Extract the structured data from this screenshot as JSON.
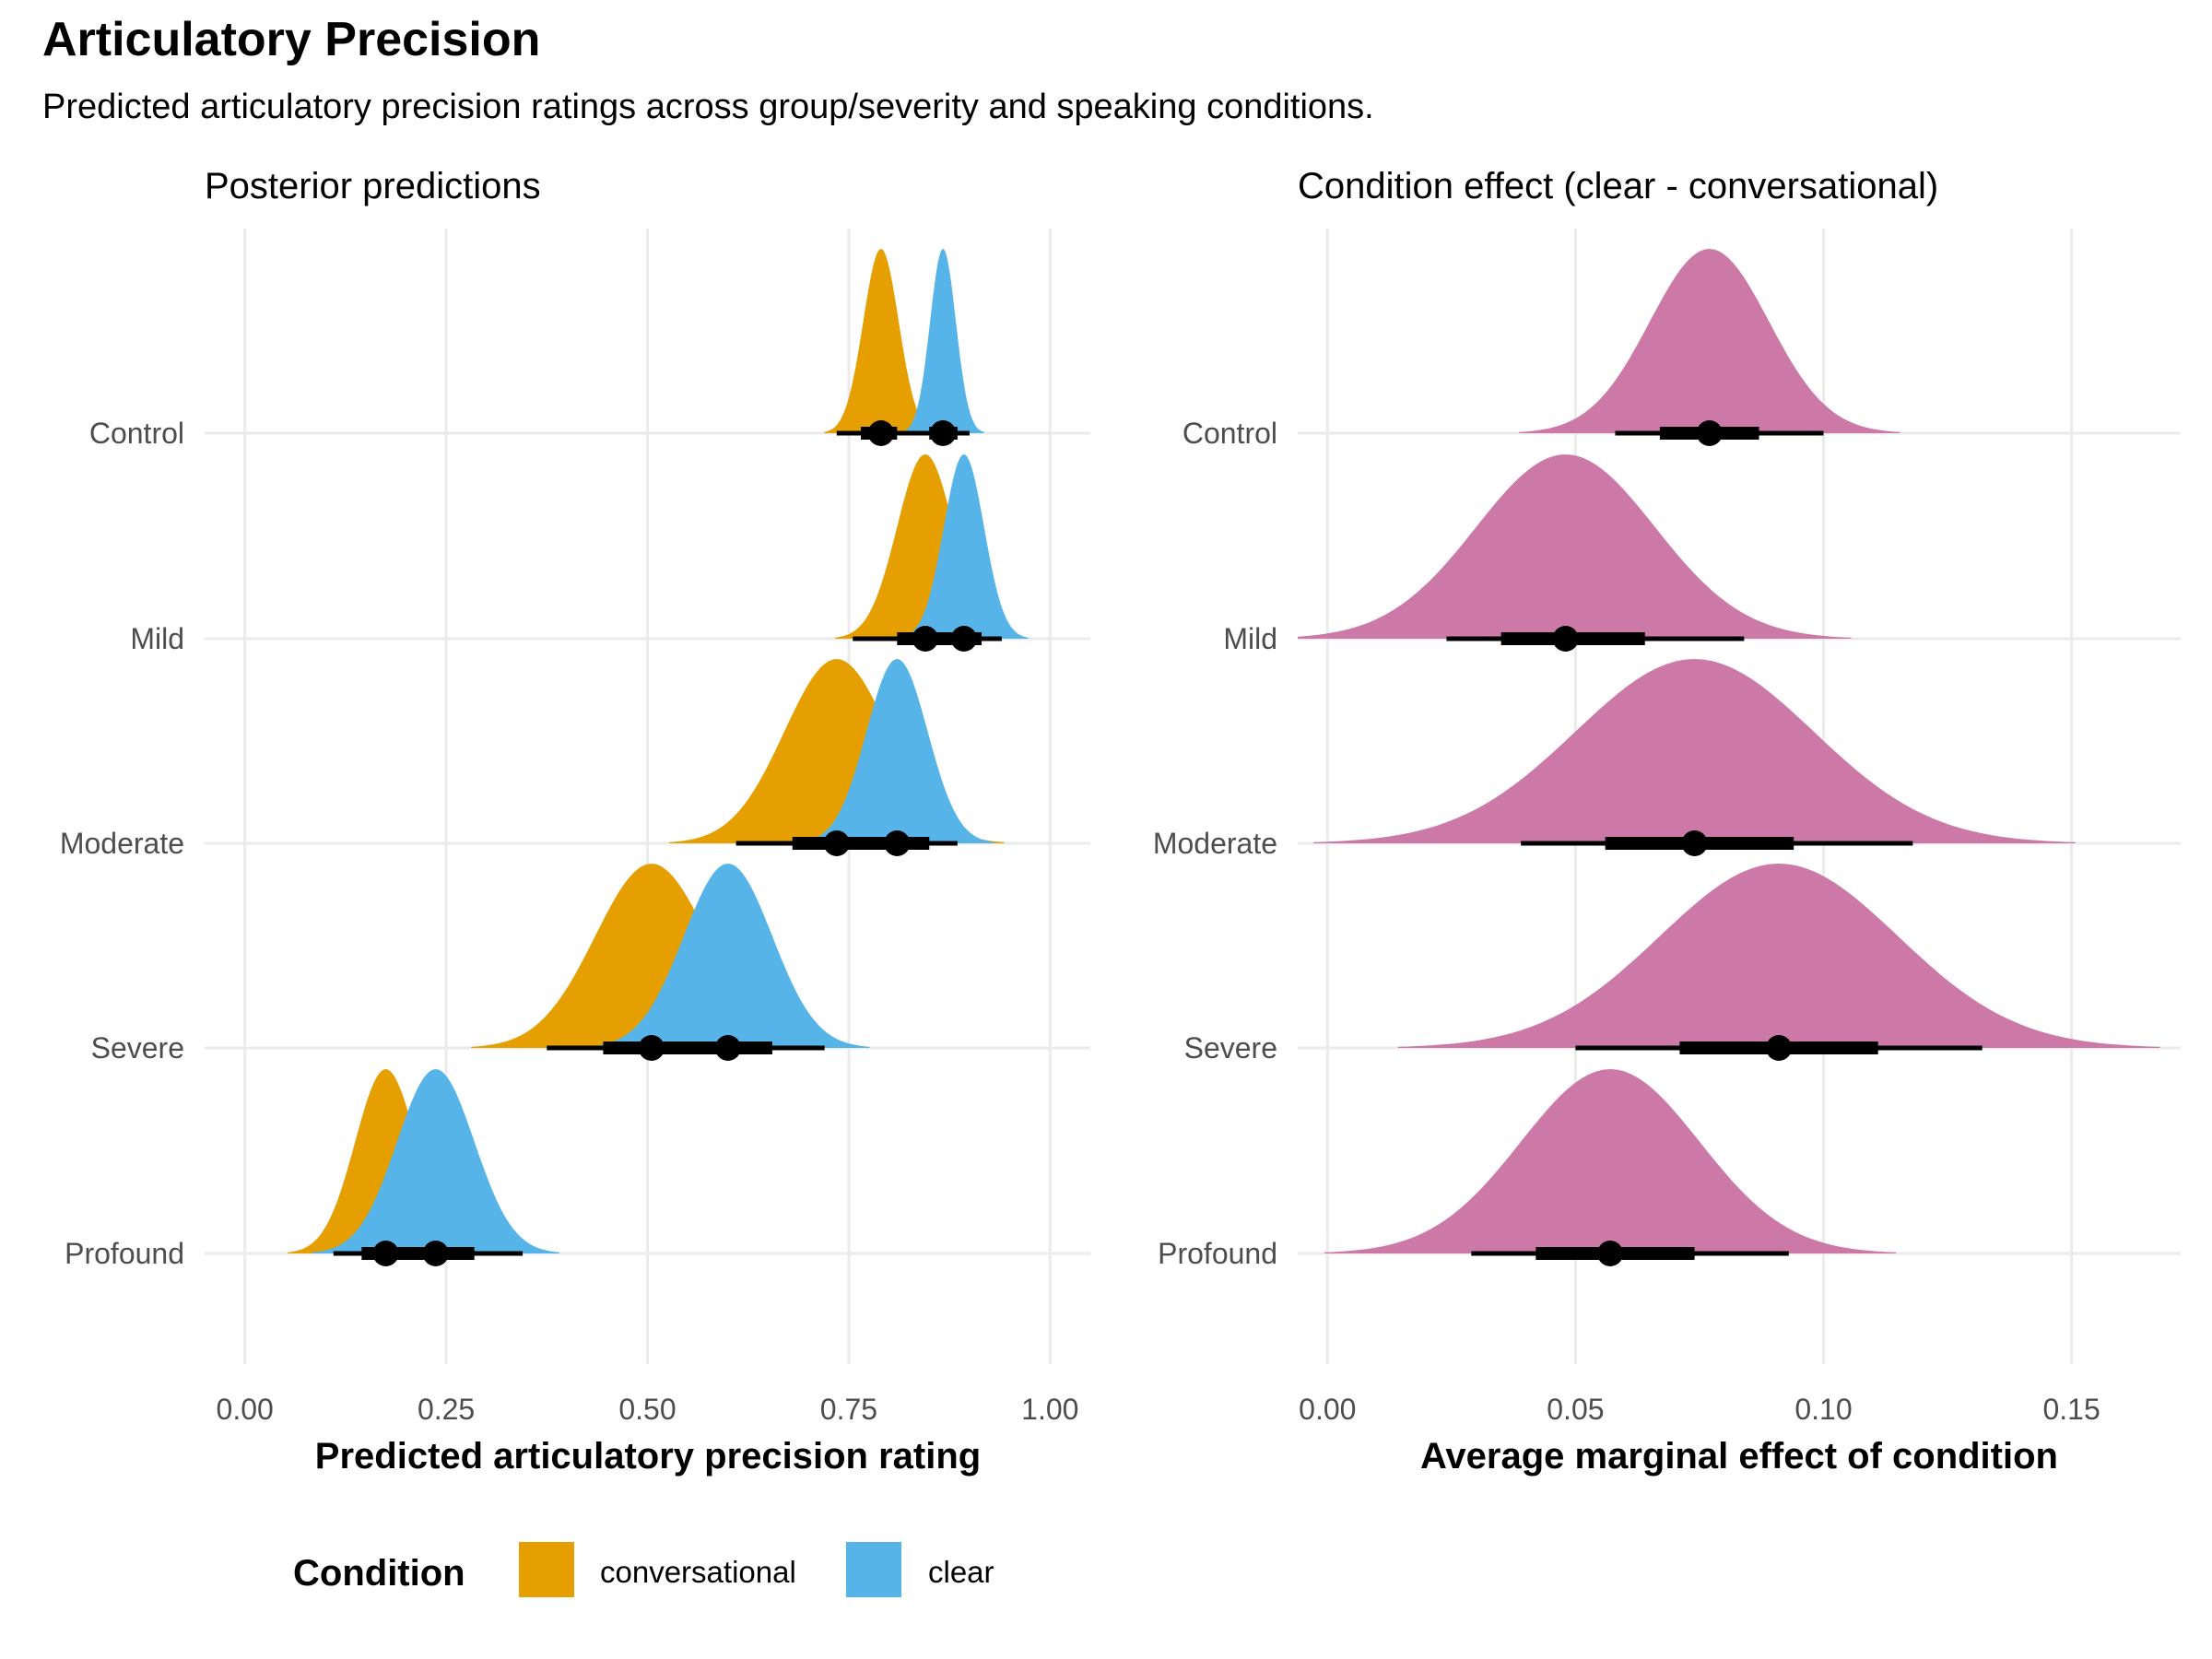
{
  "title": "Articulatory Precision",
  "subtitle": "Predicted articulatory precision ratings across group/severity and speaking conditions.",
  "colors": {
    "conversational": "#E69F00",
    "clear": "#56B4E9",
    "effect": "#CC79A7",
    "grid": "#EBEBEB",
    "tick_text": "#4d4d4d"
  },
  "legend": {
    "title": "Condition",
    "items": [
      {
        "key": "conversational",
        "label": "conversational"
      },
      {
        "key": "clear",
        "label": "clear"
      }
    ]
  },
  "chart_data": [
    {
      "type": "density-interval",
      "panel": "left",
      "title": "Posterior predictions",
      "xlabel": "Predicted articulatory precision rating",
      "ylabel": "",
      "xlim": [
        -0.05,
        1.05
      ],
      "xticks": [
        0,
        0.25,
        0.5,
        0.75,
        1.0
      ],
      "xtick_labels": [
        "0.00",
        "0.25",
        "0.50",
        "0.75",
        "1.00"
      ],
      "categories": [
        "Control",
        "Mild",
        "Moderate",
        "Severe",
        "Profound"
      ],
      "series": [
        {
          "name": "conversational",
          "groups": [
            {
              "group": "Control",
              "median": 0.79,
              "sd": 0.022,
              "inner": [
                0.765,
                0.81
              ],
              "outer": [
                0.735,
                0.835
              ]
            },
            {
              "group": "Mild",
              "median": 0.845,
              "sd": 0.035,
              "inner": [
                0.81,
                0.875
              ],
              "outer": [
                0.755,
                0.905
              ]
            },
            {
              "group": "Moderate",
              "median": 0.735,
              "sd": 0.065,
              "inner": [
                0.68,
                0.79
              ],
              "outer": [
                0.61,
                0.845
              ]
            },
            {
              "group": "Severe",
              "median": 0.505,
              "sd": 0.07,
              "inner": [
                0.445,
                0.56
              ],
              "outer": [
                0.375,
                0.625
              ]
            },
            {
              "group": "Profound",
              "median": 0.175,
              "sd": 0.038,
              "inner": [
                0.145,
                0.205
              ],
              "outer": [
                0.11,
                0.245
              ]
            }
          ]
        },
        {
          "name": "clear",
          "groups": [
            {
              "group": "Control",
              "median": 0.867,
              "sd": 0.016,
              "inner": [
                0.85,
                0.885
              ],
              "outer": [
                0.83,
                0.9
              ]
            },
            {
              "group": "Mild",
              "median": 0.893,
              "sd": 0.025,
              "inner": [
                0.87,
                0.915
              ],
              "outer": [
                0.84,
                0.94
              ]
            },
            {
              "group": "Moderate",
              "median": 0.81,
              "sd": 0.038,
              "inner": [
                0.775,
                0.85
              ],
              "outer": [
                0.735,
                0.885
              ]
            },
            {
              "group": "Severe",
              "median": 0.6,
              "sd": 0.055,
              "inner": [
                0.55,
                0.655
              ],
              "outer": [
                0.49,
                0.72
              ]
            },
            {
              "group": "Profound",
              "median": 0.237,
              "sd": 0.048,
              "inner": [
                0.195,
                0.285
              ],
              "outer": [
                0.15,
                0.345
              ]
            }
          ]
        }
      ]
    },
    {
      "type": "density-interval",
      "panel": "right",
      "title": "Condition effect (clear - conversational)",
      "xlabel": "Average marginal effect of condition",
      "ylabel": "",
      "xlim": [
        -0.006,
        0.172
      ],
      "xticks": [
        0,
        0.05,
        0.1,
        0.15
      ],
      "xtick_labels": [
        "0.00",
        "0.05",
        "0.10",
        "0.15"
      ],
      "categories": [
        "Control",
        "Mild",
        "Moderate",
        "Severe",
        "Profound"
      ],
      "series": [
        {
          "name": "effect",
          "groups": [
            {
              "group": "Control",
              "median": 0.077,
              "sd": 0.012,
              "inner": [
                0.067,
                0.087
              ],
              "outer": [
                0.058,
                0.1
              ]
            },
            {
              "group": "Mild",
              "median": 0.048,
              "sd": 0.018,
              "inner": [
                0.035,
                0.064
              ],
              "outer": [
                0.024,
                0.084
              ]
            },
            {
              "group": "Moderate",
              "median": 0.074,
              "sd": 0.024,
              "inner": [
                0.056,
                0.094
              ],
              "outer": [
                0.039,
                0.118
              ]
            },
            {
              "group": "Severe",
              "median": 0.091,
              "sd": 0.024,
              "inner": [
                0.071,
                0.111
              ],
              "outer": [
                0.05,
                0.132
              ]
            },
            {
              "group": "Profound",
              "median": 0.057,
              "sd": 0.018,
              "inner": [
                0.042,
                0.074
              ],
              "outer": [
                0.029,
                0.093
              ]
            }
          ]
        }
      ]
    }
  ]
}
